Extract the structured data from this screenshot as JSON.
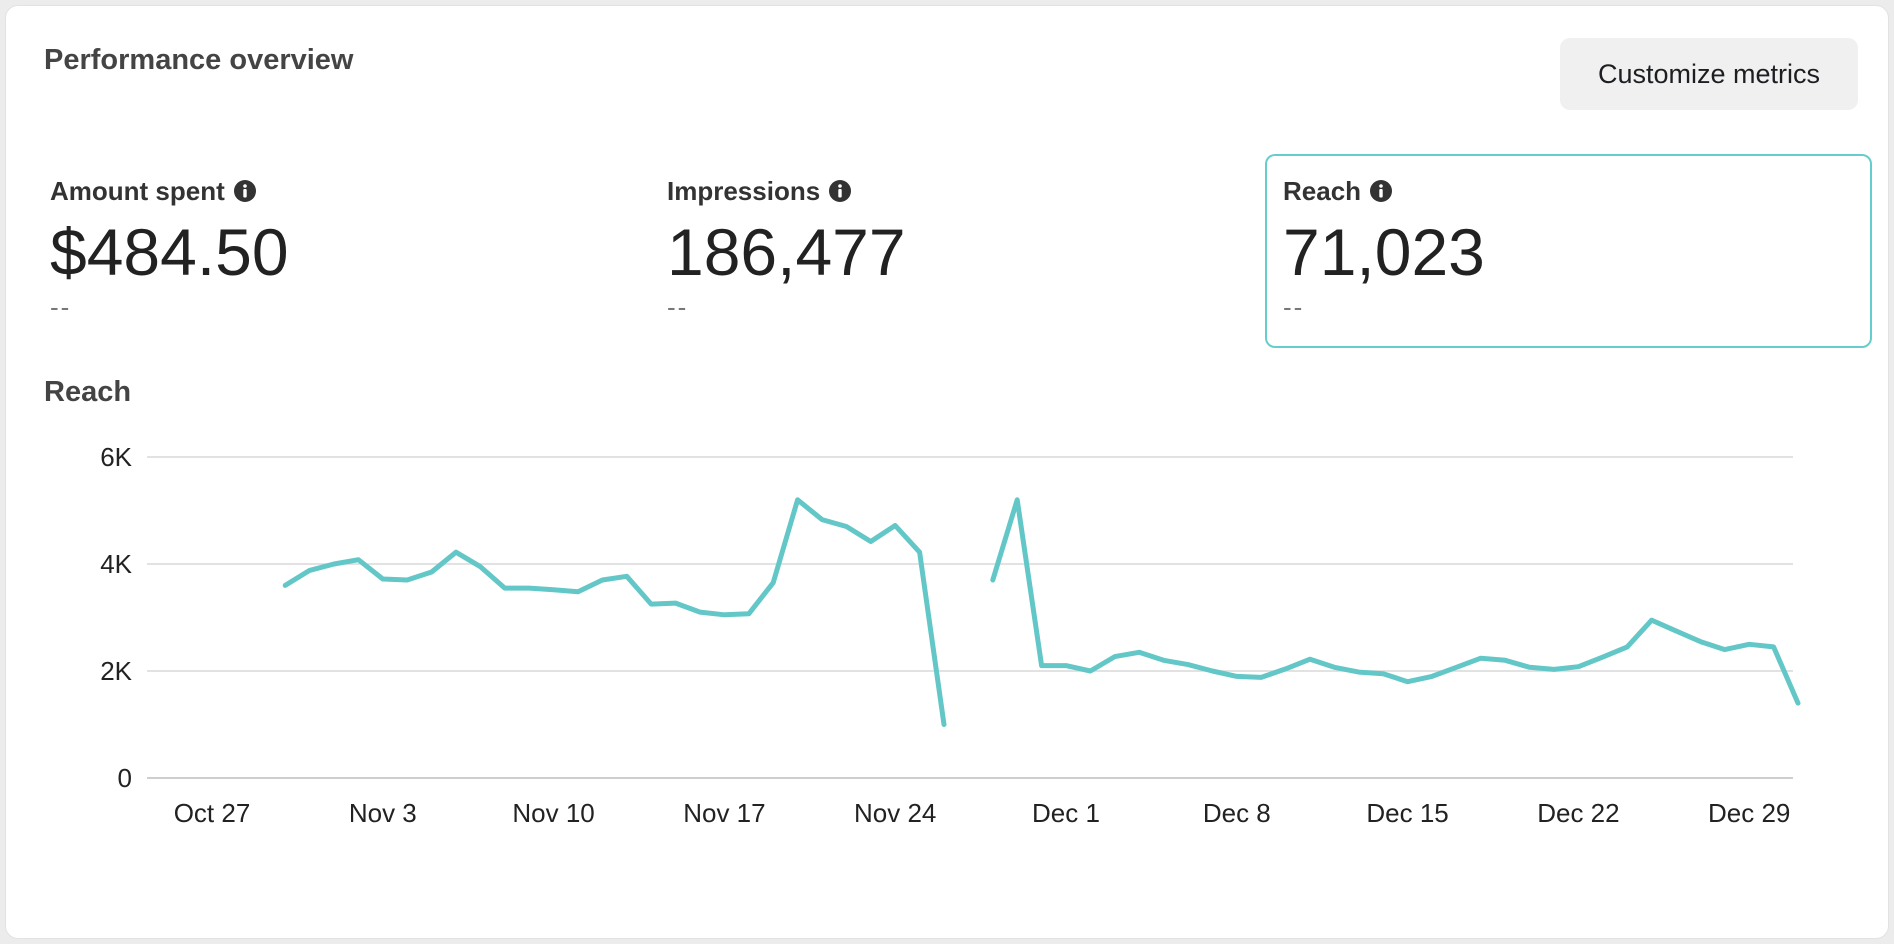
{
  "header": {
    "title": "Performance overview",
    "customize_label": "Customize metrics"
  },
  "metrics": [
    {
      "label": "Amount spent",
      "value": "$484.50",
      "delta": "--",
      "icon": "info-icon"
    },
    {
      "label": "Impressions",
      "value": "186,477",
      "delta": "--",
      "icon": "info-icon"
    },
    {
      "label": "Reach",
      "value": "71,023",
      "delta": "--",
      "icon": "info-icon",
      "selected": true
    }
  ],
  "chart_title": "Reach",
  "colors": {
    "accent": "#66cdcc",
    "line": "#63c7c7",
    "grid": "#d9d9d9",
    "axis_text": "#222222"
  },
  "chart_data": {
    "type": "line",
    "title": "Reach",
    "xlabel": "",
    "ylabel": "",
    "ylim": [
      0,
      6000
    ],
    "y_ticks": [
      {
        "value": 0,
        "label": "0"
      },
      {
        "value": 2000,
        "label": "2K"
      },
      {
        "value": 4000,
        "label": "4K"
      },
      {
        "value": 6000,
        "label": "6K"
      }
    ],
    "x_range": [
      "2023-10-25",
      "2023-12-30"
    ],
    "x_ticks": [
      {
        "date": "2023-10-27",
        "label": "Oct 27"
      },
      {
        "date": "2023-11-03",
        "label": "Nov 3"
      },
      {
        "date": "2023-11-10",
        "label": "Nov 10"
      },
      {
        "date": "2023-11-17",
        "label": "Nov 17"
      },
      {
        "date": "2023-11-24",
        "label": "Nov 24"
      },
      {
        "date": "2023-12-01",
        "label": "Dec 1"
      },
      {
        "date": "2023-12-08",
        "label": "Dec 8"
      },
      {
        "date": "2023-12-15",
        "label": "Dec 15"
      },
      {
        "date": "2023-12-22",
        "label": "Dec 22"
      },
      {
        "date": "2023-12-29",
        "label": "Dec 29"
      }
    ],
    "grid": true,
    "series": [
      {
        "name": "",
        "segments": [
          [
            [
              "2023-10-30",
              3600
            ],
            [
              "2023-10-31",
              3880
            ],
            [
              "2023-11-01",
              4000
            ],
            [
              "2023-11-02",
              4080
            ],
            [
              "2023-11-03",
              3720
            ],
            [
              "2023-11-04",
              3700
            ],
            [
              "2023-11-05",
              3850
            ],
            [
              "2023-11-06",
              4220
            ],
            [
              "2023-11-07",
              3950
            ],
            [
              "2023-11-08",
              3550
            ],
            [
              "2023-11-09",
              3550
            ],
            [
              "2023-11-10",
              3520
            ],
            [
              "2023-11-11",
              3480
            ],
            [
              "2023-11-12",
              3700
            ],
            [
              "2023-11-13",
              3770
            ],
            [
              "2023-11-14",
              3250
            ],
            [
              "2023-11-15",
              3270
            ],
            [
              "2023-11-16",
              3100
            ],
            [
              "2023-11-17",
              3050
            ],
            [
              "2023-11-18",
              3070
            ],
            [
              "2023-11-19",
              3650
            ],
            [
              "2023-11-20",
              5200
            ],
            [
              "2023-11-21",
              4830
            ],
            [
              "2023-11-22",
              4700
            ],
            [
              "2023-11-23",
              4420
            ],
            [
              "2023-11-24",
              4720
            ],
            [
              "2023-11-25",
              4220
            ],
            [
              "2023-11-26",
              1000
            ]
          ],
          [
            [
              "2023-11-28",
              3700
            ],
            [
              "2023-11-29",
              5200
            ],
            [
              "2023-11-30",
              2100
            ],
            [
              "2023-12-01",
              2100
            ],
            [
              "2023-12-02",
              2000
            ],
            [
              "2023-12-03",
              2270
            ],
            [
              "2023-12-04",
              2350
            ],
            [
              "2023-12-05",
              2200
            ],
            [
              "2023-12-06",
              2120
            ],
            [
              "2023-12-07",
              2000
            ],
            [
              "2023-12-08",
              1900
            ],
            [
              "2023-12-09",
              1880
            ],
            [
              "2023-12-10",
              2040
            ],
            [
              "2023-12-11",
              2220
            ],
            [
              "2023-12-12",
              2070
            ],
            [
              "2023-12-13",
              1980
            ],
            [
              "2023-12-14",
              1950
            ],
            [
              "2023-12-15",
              1800
            ],
            [
              "2023-12-16",
              1900
            ],
            [
              "2023-12-17",
              2070
            ],
            [
              "2023-12-18",
              2240
            ],
            [
              "2023-12-19",
              2200
            ],
            [
              "2023-12-20",
              2070
            ],
            [
              "2023-12-21",
              2030
            ],
            [
              "2023-12-22",
              2080
            ],
            [
              "2023-12-23",
              2260
            ],
            [
              "2023-12-24",
              2450
            ],
            [
              "2023-12-25",
              2950
            ],
            [
              "2023-12-26",
              2750
            ],
            [
              "2023-12-27",
              2550
            ],
            [
              "2023-12-28",
              2400
            ],
            [
              "2023-12-29",
              2500
            ],
            [
              "2023-12-30",
              2450
            ],
            [
              "2023-12-31",
              1400
            ]
          ]
        ]
      }
    ]
  }
}
